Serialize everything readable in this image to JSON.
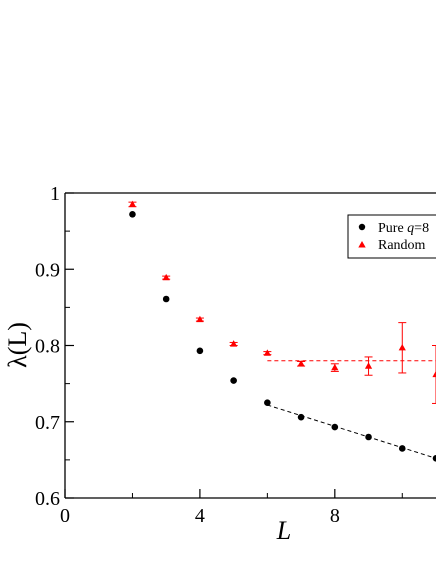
{
  "chart_data": {
    "type": "scatter",
    "title": "",
    "xlabel": "L",
    "ylabel": "λ(L)",
    "xlim": [
      0,
      11
    ],
    "ylim": [
      0.6,
      1.0
    ],
    "x_ticks": [
      0,
      4,
      8
    ],
    "y_ticks": [
      0.6,
      0.7,
      0.8,
      0.9,
      1
    ],
    "x_tick_labels": [
      "0",
      "4",
      "8"
    ],
    "y_tick_labels": [
      "0.6",
      "0.7",
      "0.8",
      "0.9",
      "1"
    ],
    "grid": false,
    "legend_position": "top-right",
    "series": [
      {
        "name": "Pure q=8",
        "marker": "circle",
        "color": "#000000",
        "x": [
          2,
          3,
          4,
          5,
          6,
          7,
          8,
          9,
          10,
          11
        ],
        "y": [
          0.972,
          0.861,
          0.793,
          0.754,
          0.725,
          0.706,
          0.693,
          0.68,
          0.665,
          0.652
        ]
      },
      {
        "name": "Random",
        "marker": "triangle",
        "color": "#ff0000",
        "x": [
          2,
          3,
          4,
          5,
          6,
          7,
          8,
          9,
          10,
          11
        ],
        "y": [
          0.985,
          0.889,
          0.834,
          0.802,
          0.79,
          0.776,
          0.771,
          0.773,
          0.797,
          0.762
        ],
        "err": [
          0.003,
          0.002,
          0.002,
          0.002,
          0.002,
          0.003,
          0.005,
          0.012,
          0.033,
          0.038
        ]
      }
    ],
    "fits": [
      {
        "series": "Pure q=8",
        "style": "dashed",
        "color": "#000000",
        "x": [
          6,
          11
        ],
        "y": [
          0.722,
          0.652
        ]
      },
      {
        "series": "Random",
        "style": "dashed",
        "color": "#ff0000",
        "x": [
          6,
          11
        ],
        "y": [
          0.78,
          0.78
        ]
      }
    ]
  },
  "legend": {
    "entries": [
      {
        "label": "Pure ",
        "label_italic": "q",
        "label_suffix": "=8",
        "marker": "circle",
        "color": "#000000"
      },
      {
        "label": "Random",
        "label_italic": "",
        "label_suffix": "",
        "marker": "triangle",
        "color": "#ff0000"
      }
    ]
  }
}
